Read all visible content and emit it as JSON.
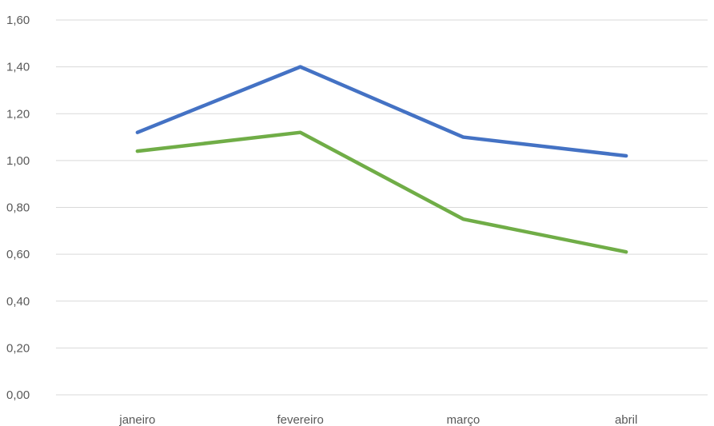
{
  "chart_data": {
    "type": "line",
    "title": "",
    "xlabel": "",
    "ylabel": "",
    "categories": [
      "janeiro",
      "fevereiro",
      "março",
      "abril"
    ],
    "ylim": [
      0,
      1.6
    ],
    "y_ticks": [
      "0,00",
      "0,20",
      "0,40",
      "0,60",
      "0,80",
      "1,00",
      "1,20",
      "1,40",
      "1,60"
    ],
    "grid": true,
    "legend": "none",
    "series": [
      {
        "color": "#4472c4",
        "values": [
          1.12,
          1.4,
          1.1,
          1.02
        ]
      },
      {
        "color": "#70ad47",
        "values": [
          1.04,
          1.12,
          0.75,
          0.61
        ]
      }
    ]
  }
}
